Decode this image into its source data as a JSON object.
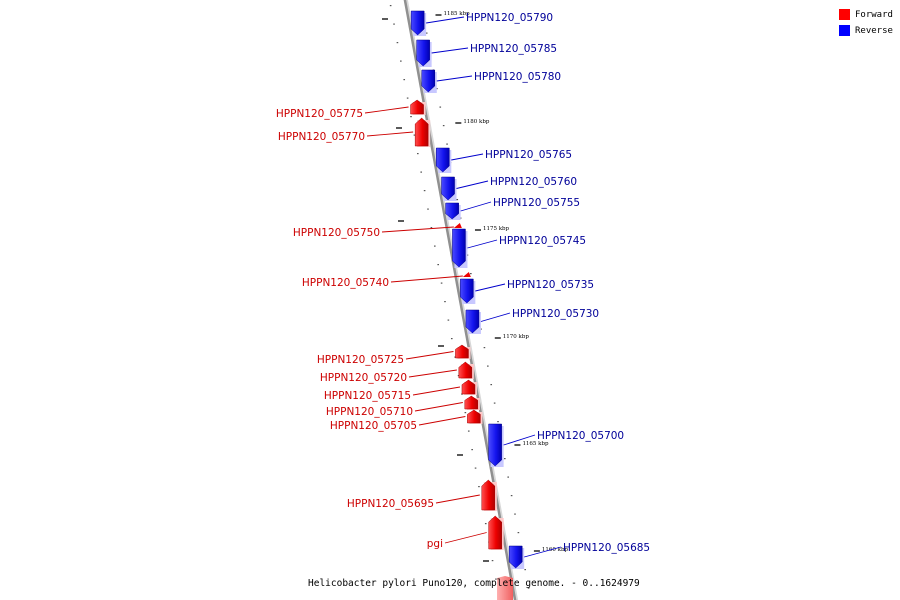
{
  "caption": "Helicobacter pylori Puno120, complete genome. - 0..1624979",
  "legend": [
    {
      "label": "Forward",
      "color": "#ff0000"
    },
    {
      "label": "Reverse",
      "color": "#0000ff"
    }
  ],
  "colors": {
    "forward": "#ee0000",
    "reverse": "#1010ee",
    "forward_label": "#cc0000",
    "reverse_label": "#000099",
    "backbone": "#909090"
  },
  "ticks": [
    "1185 kbp",
    "1180 kbp",
    "1175 kbp",
    "1170 kbp",
    "1165 kbp",
    "1160 kbp"
  ],
  "genes": [
    {
      "name": "HPPN120_05790",
      "strand": "reverse"
    },
    {
      "name": "HPPN120_05785",
      "strand": "reverse"
    },
    {
      "name": "HPPN120_05780",
      "strand": "reverse"
    },
    {
      "name": "HPPN120_05775",
      "strand": "forward"
    },
    {
      "name": "HPPN120_05770",
      "strand": "forward"
    },
    {
      "name": "HPPN120_05765",
      "strand": "reverse"
    },
    {
      "name": "HPPN120_05760",
      "strand": "reverse"
    },
    {
      "name": "HPPN120_05755",
      "strand": "reverse"
    },
    {
      "name": "HPPN120_05750",
      "strand": "forward"
    },
    {
      "name": "HPPN120_05745",
      "strand": "reverse"
    },
    {
      "name": "HPPN120_05740",
      "strand": "forward"
    },
    {
      "name": "HPPN120_05735",
      "strand": "reverse"
    },
    {
      "name": "HPPN120_05730",
      "strand": "reverse"
    },
    {
      "name": "HPPN120_05725",
      "strand": "forward"
    },
    {
      "name": "HPPN120_05720",
      "strand": "forward"
    },
    {
      "name": "HPPN120_05715",
      "strand": "forward"
    },
    {
      "name": "HPPN120_05710",
      "strand": "forward"
    },
    {
      "name": "HPPN120_05705",
      "strand": "forward"
    },
    {
      "name": "HPPN120_05700",
      "strand": "reverse"
    },
    {
      "name": "HPPN120_05695",
      "strand": "forward"
    },
    {
      "name": "pgi",
      "strand": "forward"
    },
    {
      "name": "HPPN120_05685",
      "strand": "reverse"
    }
  ]
}
